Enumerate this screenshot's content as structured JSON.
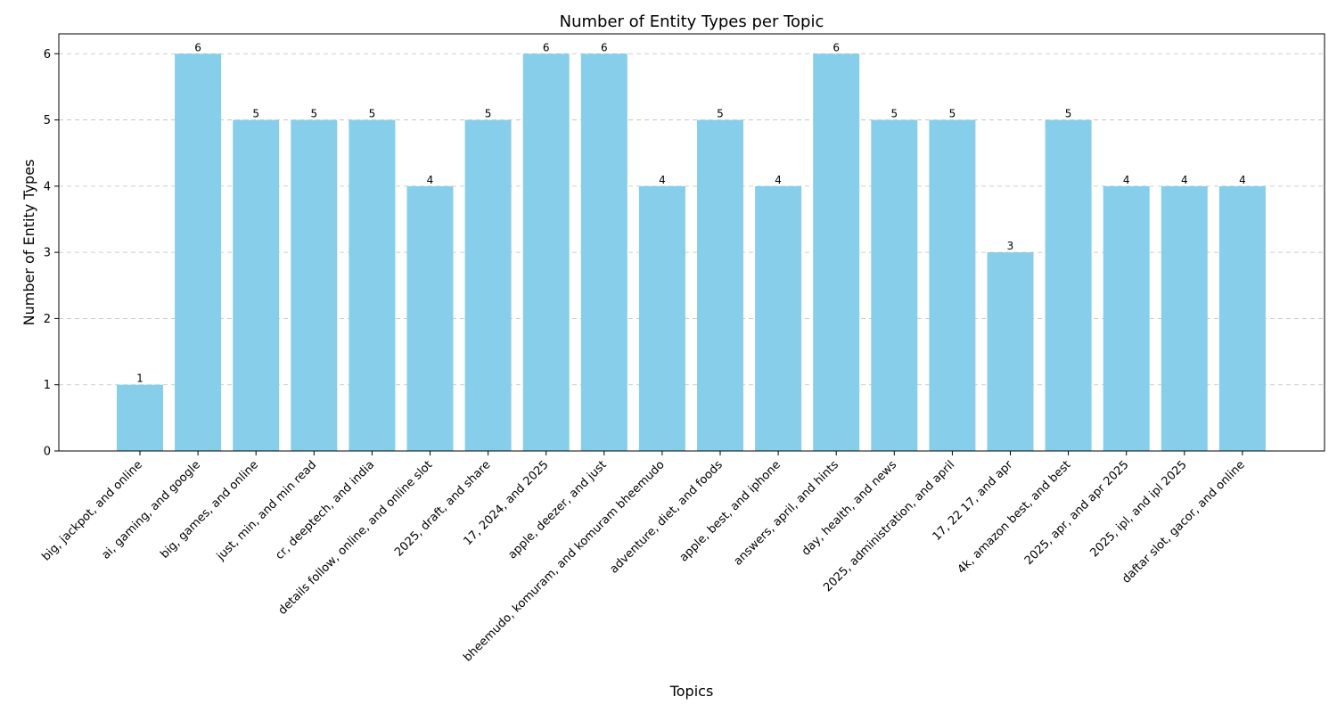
{
  "chart_data": {
    "type": "bar",
    "title": "Number of Entity Types per Topic",
    "xlabel": "Topics",
    "ylabel": "Number of Entity Types",
    "ylim": [
      0,
      6.3
    ],
    "yticks": [
      0,
      1,
      2,
      3,
      4,
      5,
      6
    ],
    "grid": "y-dashed",
    "bar_color": "#87CEEB",
    "categories": [
      "big, jackpot, and online",
      "ai, gaming, and google",
      "big, games, and online",
      "just, min, and min read",
      "cr, deeptech, and india",
      "details follow, online, and online slot",
      "2025, draft, and share",
      "17, 2024, and 2025",
      "apple, deezer, and just",
      "bheemudo, komuram, and komuram bheemudo",
      "adventure, diet, and foods",
      "apple, best, and iphone",
      "answers, april, and hints",
      "day, health, and news",
      "2025, administration, and april",
      "17, 22 17, and apr",
      "4k, amazon best, and best",
      "2025, apr, and apr 2025",
      "2025, ipl, and ipl 2025",
      "daftar slot, gacor, and online"
    ],
    "values": [
      1,
      6,
      5,
      5,
      5,
      4,
      5,
      6,
      6,
      4,
      5,
      4,
      6,
      5,
      5,
      3,
      5,
      4,
      4,
      4
    ]
  }
}
